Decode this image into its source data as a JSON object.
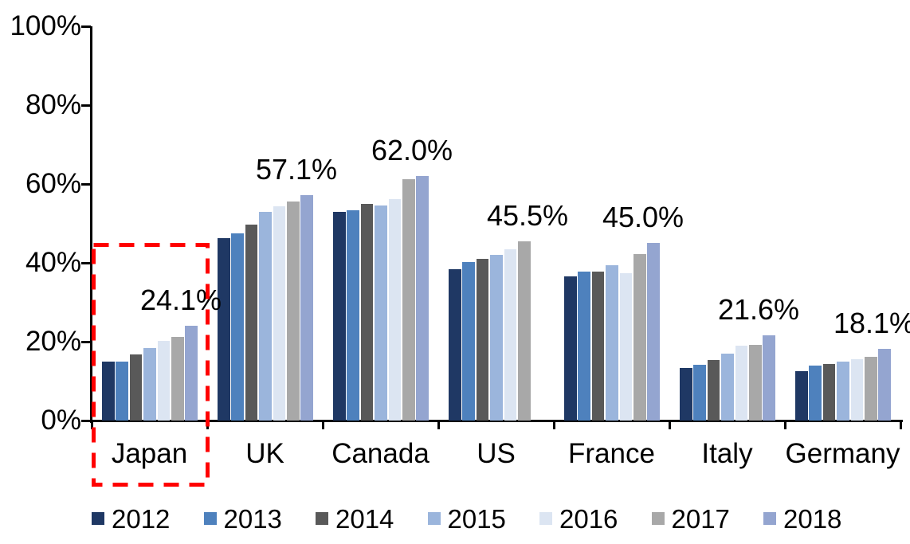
{
  "chart_data": {
    "type": "bar",
    "title": "",
    "categories": [
      "Japan",
      "UK",
      "Canada",
      "US",
      "France",
      "Italy",
      "Germany"
    ],
    "series": [
      {
        "name": "2012",
        "color": "#1F3864",
        "values": [
          14.9,
          46.3,
          53.0,
          38.3,
          36.6,
          13.3,
          12.6
        ]
      },
      {
        "name": "2013",
        "color": "#4E81BD",
        "values": [
          15.0,
          47.5,
          53.4,
          40.2,
          37.8,
          14.2,
          14.0
        ]
      },
      {
        "name": "2014",
        "color": "#595959",
        "values": [
          16.8,
          49.7,
          54.9,
          41.0,
          37.7,
          15.3,
          14.3
        ]
      },
      {
        "name": "2015",
        "color": "#9BB5DC",
        "values": [
          18.3,
          53.0,
          54.5,
          42.0,
          39.3,
          16.9,
          15.0
        ]
      },
      {
        "name": "2016",
        "color": "#DCE5F2",
        "values": [
          20.2,
          54.3,
          56.1,
          43.5,
          37.3,
          19.0,
          15.5
        ]
      },
      {
        "name": "2017",
        "color": "#A8A8A8",
        "values": [
          21.3,
          55.5,
          61.3,
          45.5,
          42.3,
          19.2,
          16.2
        ]
      },
      {
        "name": "2018",
        "color": "#94A5D0",
        "values": [
          24.1,
          57.1,
          62.0,
          null,
          45.0,
          21.6,
          18.1
        ]
      }
    ],
    "data_labels": [
      {
        "category": "Japan",
        "text": "24.1%"
      },
      {
        "category": "UK",
        "text": "57.1%"
      },
      {
        "category": "Canada",
        "text": "62.0%"
      },
      {
        "category": "US",
        "text": "45.5%"
      },
      {
        "category": "France",
        "text": "45.0%"
      },
      {
        "category": "Italy",
        "text": "21.6%"
      },
      {
        "category": "Germany",
        "text": "18.1%"
      }
    ],
    "y_axis": {
      "min": 0,
      "max": 100,
      "tick_labels": [
        "0%",
        "20%",
        "40%",
        "60%",
        "80%",
        "100%"
      ],
      "grid": false
    },
    "legend": {
      "position": "bottom",
      "entries": [
        "2012",
        "2013",
        "2014",
        "2015",
        "2016",
        "2017",
        "2018"
      ]
    },
    "highlight": {
      "category": "Japan",
      "shape": "dashed-rectangle",
      "color": "#FF0000"
    },
    "axis_color": "#000000",
    "background_color": "#FFFFFF"
  }
}
